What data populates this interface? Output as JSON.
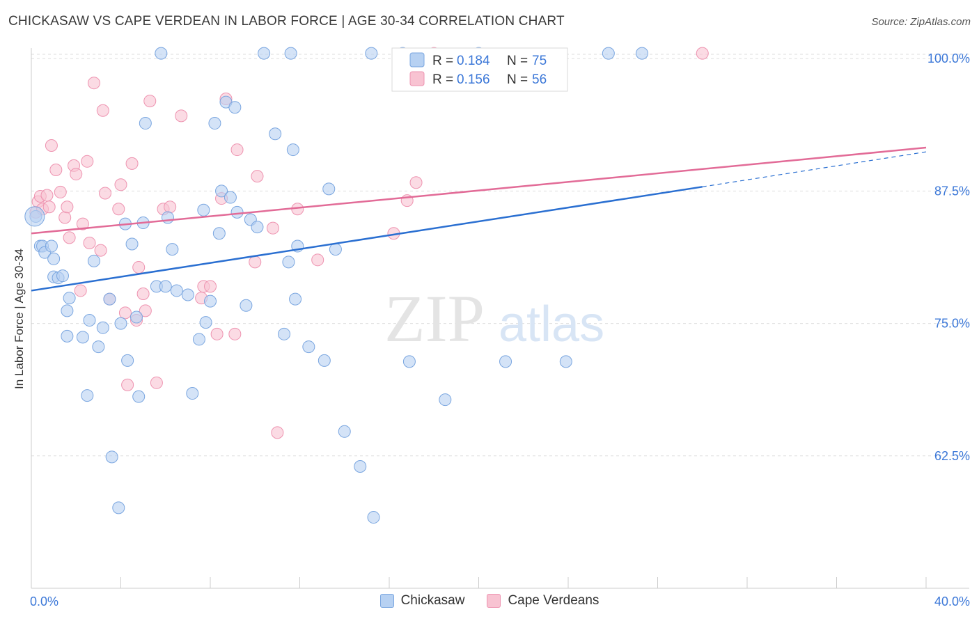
{
  "header": {
    "title": "CHICKASAW VS CAPE VERDEAN IN LABOR FORCE | AGE 30-34 CORRELATION CHART",
    "source": "Source: ZipAtlas.com"
  },
  "watermark": {
    "zip": "ZIP",
    "atlas": "atlas"
  },
  "legend_box": {
    "rows": [
      {
        "r_label": "R =",
        "r_value": "0.184",
        "n_label": "N =",
        "n_value": "75"
      },
      {
        "r_label": "R =",
        "r_value": "0.156",
        "n_label": "N =",
        "n_value": "56"
      }
    ]
  },
  "bottom_legend": {
    "items": [
      {
        "label": "Chickasaw"
      },
      {
        "label": "Cape Verdeans"
      }
    ]
  },
  "colors": {
    "blue_fill": "#b7d1f2",
    "blue_stroke": "#7aa6e0",
    "blue_line": "#2a6fd1",
    "pink_fill": "#f8c3d2",
    "pink_stroke": "#ee93b0",
    "pink_line": "#e26b97",
    "value_text": "#3c78d8",
    "grid": "#dddddd"
  },
  "chart_data": {
    "type": "scatter",
    "title": "CHICKASAW VS CAPE VERDEAN IN LABOR FORCE | AGE 30-34 CORRELATION CHART",
    "ylabel": "In Labor Force | Age 30-34",
    "xlabel": "",
    "xlim": [
      0,
      40
    ],
    "ylim": [
      50,
      101
    ],
    "x_tick_labels": [
      "0.0%",
      "40.0%"
    ],
    "y_tick_labels": [
      "100.0%",
      "87.5%",
      "75.0%",
      "62.5%"
    ],
    "y_ticks": [
      100,
      87.5,
      75,
      62.5
    ],
    "grid": true,
    "legend_position": "top-center",
    "series": [
      {
        "name": "Chickasaw",
        "r": 0.184,
        "n": 75,
        "trend": {
          "x": [
            0,
            30
          ],
          "y": [
            78.1,
            87.9
          ],
          "extended_to": [
            40,
            91.2
          ]
        },
        "points": [
          [
            0.2,
            85.1
          ],
          [
            0.4,
            82.3
          ],
          [
            0.5,
            82.3
          ],
          [
            0.6,
            81.7
          ],
          [
            0.9,
            82.3
          ],
          [
            1.0,
            81.1
          ],
          [
            1.0,
            79.4
          ],
          [
            1.2,
            79.3
          ],
          [
            1.4,
            79.5
          ],
          [
            1.6,
            76.2
          ],
          [
            1.7,
            77.4
          ],
          [
            1.6,
            73.8
          ],
          [
            2.3,
            73.7
          ],
          [
            2.6,
            75.3
          ],
          [
            2.5,
            68.2
          ],
          [
            2.8,
            80.9
          ],
          [
            3.0,
            72.8
          ],
          [
            3.2,
            74.6
          ],
          [
            3.5,
            77.3
          ],
          [
            3.6,
            62.4
          ],
          [
            3.9,
            57.6
          ],
          [
            4.0,
            75.0
          ],
          [
            4.2,
            84.4
          ],
          [
            4.3,
            71.5
          ],
          [
            4.5,
            82.5
          ],
          [
            4.7,
            75.6
          ],
          [
            4.8,
            68.1
          ],
          [
            5.0,
            84.5
          ],
          [
            5.1,
            93.9
          ],
          [
            5.6,
            78.5
          ],
          [
            6.0,
            78.5
          ],
          [
            6.1,
            85.0
          ],
          [
            6.3,
            82.0
          ],
          [
            6.5,
            78.1
          ],
          [
            7.0,
            77.7
          ],
          [
            7.2,
            68.4
          ],
          [
            7.5,
            73.5
          ],
          [
            7.7,
            85.7
          ],
          [
            7.8,
            75.1
          ],
          [
            8.0,
            77.1
          ],
          [
            8.2,
            93.9
          ],
          [
            8.4,
            83.5
          ],
          [
            8.5,
            87.5
          ],
          [
            8.7,
            95.9
          ],
          [
            8.9,
            86.9
          ],
          [
            9.1,
            95.4
          ],
          [
            9.2,
            85.5
          ],
          [
            9.6,
            76.7
          ],
          [
            9.8,
            84.8
          ],
          [
            10.1,
            84.1
          ],
          [
            10.9,
            92.9
          ],
          [
            11.3,
            74.0
          ],
          [
            11.5,
            80.8
          ],
          [
            11.7,
            91.4
          ],
          [
            11.8,
            77.3
          ],
          [
            11.9,
            82.3
          ],
          [
            12.4,
            72.8
          ],
          [
            13.1,
            71.5
          ],
          [
            13.3,
            87.7
          ],
          [
            13.6,
            82.0
          ],
          [
            14.0,
            64.8
          ],
          [
            14.7,
            61.5
          ],
          [
            15.3,
            56.7
          ],
          [
            16.9,
            71.4
          ],
          [
            18.5,
            67.8
          ],
          [
            21.2,
            71.4
          ],
          [
            23.9,
            71.4
          ],
          [
            5.8,
            100.5
          ],
          [
            10.4,
            100.5
          ],
          [
            11.6,
            100.5
          ],
          [
            15.2,
            100.5
          ],
          [
            16.6,
            100.5
          ],
          [
            20.0,
            100.5
          ],
          [
            25.8,
            100.5
          ],
          [
            27.3,
            100.5
          ]
        ]
      },
      {
        "name": "Cape Verdeans",
        "r": 0.156,
        "n": 56,
        "trend": {
          "x": [
            0,
            40
          ],
          "y": [
            83.5,
            91.6
          ]
        },
        "points": [
          [
            0.2,
            85.5
          ],
          [
            0.3,
            86.5
          ],
          [
            0.4,
            87.0
          ],
          [
            0.5,
            85.8
          ],
          [
            0.7,
            87.1
          ],
          [
            0.8,
            86.0
          ],
          [
            0.9,
            91.8
          ],
          [
            1.1,
            89.5
          ],
          [
            1.3,
            87.4
          ],
          [
            1.5,
            85.0
          ],
          [
            1.6,
            86.0
          ],
          [
            1.7,
            83.1
          ],
          [
            1.9,
            89.9
          ],
          [
            2.0,
            89.1
          ],
          [
            2.2,
            78.1
          ],
          [
            2.3,
            84.4
          ],
          [
            2.5,
            90.3
          ],
          [
            2.6,
            82.6
          ],
          [
            2.8,
            97.7
          ],
          [
            3.1,
            81.9
          ],
          [
            3.2,
            95.1
          ],
          [
            3.3,
            87.3
          ],
          [
            3.5,
            77.3
          ],
          [
            3.9,
            85.8
          ],
          [
            4.0,
            88.1
          ],
          [
            4.2,
            76.0
          ],
          [
            4.3,
            69.2
          ],
          [
            4.5,
            90.1
          ],
          [
            4.7,
            75.3
          ],
          [
            4.8,
            80.3
          ],
          [
            5.0,
            77.8
          ],
          [
            5.1,
            76.2
          ],
          [
            5.3,
            96.0
          ],
          [
            5.6,
            69.4
          ],
          [
            5.9,
            85.8
          ],
          [
            6.2,
            86.0
          ],
          [
            6.7,
            94.6
          ],
          [
            7.6,
            77.4
          ],
          [
            7.7,
            78.5
          ],
          [
            8.0,
            78.5
          ],
          [
            8.3,
            74.0
          ],
          [
            8.5,
            86.8
          ],
          [
            8.7,
            96.2
          ],
          [
            9.1,
            74.0
          ],
          [
            9.2,
            91.4
          ],
          [
            10.0,
            80.8
          ],
          [
            10.1,
            88.9
          ],
          [
            10.8,
            84.0
          ],
          [
            11.0,
            64.7
          ],
          [
            11.9,
            85.8
          ],
          [
            12.8,
            81.0
          ],
          [
            16.2,
            83.5
          ],
          [
            16.8,
            86.6
          ],
          [
            17.2,
            88.3
          ],
          [
            18.0,
            100.5
          ],
          [
            30.0,
            100.5
          ]
        ]
      }
    ]
  }
}
